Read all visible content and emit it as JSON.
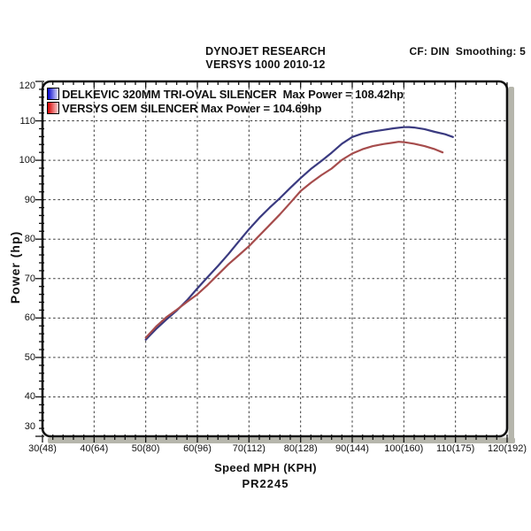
{
  "chart_data": {
    "type": "line",
    "title": "DYNOJET RESEARCH",
    "subtitle": "VERSYS 1000 2010-12",
    "corner_note": "CF: DIN  Smoothing: 5",
    "xlabel": "Speed MPH (KPH)",
    "ylabel": "Power (hp)",
    "footnote": "PR2245",
    "xlim": [
      30,
      120
    ],
    "ylim": [
      30,
      120
    ],
    "grid": "dashed-major",
    "minor_tick_step": 2,
    "legend_position": "top-left-inside",
    "x_ticks": [
      {
        "value": 30,
        "label": "30(48)"
      },
      {
        "value": 40,
        "label": "40(64)"
      },
      {
        "value": 50,
        "label": "50(80)"
      },
      {
        "value": 60,
        "label": "60(96)"
      },
      {
        "value": 70,
        "label": "70(112)"
      },
      {
        "value": 80,
        "label": "80(128)"
      },
      {
        "value": 90,
        "label": "90(144)"
      },
      {
        "value": 100,
        "label": "100(160)"
      },
      {
        "value": 110,
        "label": "110(175)"
      },
      {
        "value": 120,
        "label": "120(192)"
      }
    ],
    "y_ticks": [
      {
        "value": 30,
        "label": "30"
      },
      {
        "value": 40,
        "label": "40"
      },
      {
        "value": 50,
        "label": "50"
      },
      {
        "value": 60,
        "label": "60"
      },
      {
        "value": 70,
        "label": "70"
      },
      {
        "value": 80,
        "label": "80"
      },
      {
        "value": 90,
        "label": "90"
      },
      {
        "value": 100,
        "label": "100"
      },
      {
        "value": 110,
        "label": "110"
      },
      {
        "value": 120,
        "label": "120"
      }
    ],
    "series": [
      {
        "id": "delkevic",
        "label": "DELKEVIC 320MM TRI-OVAL SILENCER  Max Power = 108.42hp",
        "max_power_hp": 108.42,
        "color": "#3A3A80",
        "swatch_gradient": [
          "#0000CC",
          "#E8E8FF"
        ],
        "points": [
          [
            50,
            54.5
          ],
          [
            52,
            57.2
          ],
          [
            54,
            59.6
          ],
          [
            56,
            61.9
          ],
          [
            58,
            64.5
          ],
          [
            60,
            67.5
          ],
          [
            62,
            70.4
          ],
          [
            64,
            73.2
          ],
          [
            66,
            76.2
          ],
          [
            68,
            79.4
          ],
          [
            70,
            82.5
          ],
          [
            72,
            85.4
          ],
          [
            74,
            88.0
          ],
          [
            76,
            90.4
          ],
          [
            78,
            93.0
          ],
          [
            80,
            95.5
          ],
          [
            82,
            97.8
          ],
          [
            84,
            99.8
          ],
          [
            86,
            101.9
          ],
          [
            88,
            104.2
          ],
          [
            90,
            105.9
          ],
          [
            92,
            106.8
          ],
          [
            94,
            107.3
          ],
          [
            96,
            107.7
          ],
          [
            98,
            108.1
          ],
          [
            100,
            108.4
          ],
          [
            101,
            108.42
          ],
          [
            102,
            108.3
          ],
          [
            104,
            107.9
          ],
          [
            106,
            107.2
          ],
          [
            108,
            106.6
          ],
          [
            109.5,
            105.9
          ]
        ]
      },
      {
        "id": "oem",
        "label": "VERSYS OEM SILENCER Max Power = 104.69hp",
        "max_power_hp": 104.69,
        "color": "#A64C4C",
        "swatch_gradient": [
          "#D40000",
          "#FFD6D6"
        ],
        "points": [
          [
            50,
            55.0
          ],
          [
            52,
            57.8
          ],
          [
            54,
            60.2
          ],
          [
            56,
            62.1
          ],
          [
            58,
            64.1
          ],
          [
            60,
            66.0
          ],
          [
            62,
            68.4
          ],
          [
            64,
            71.0
          ],
          [
            66,
            73.6
          ],
          [
            68,
            75.9
          ],
          [
            70,
            78.2
          ],
          [
            72,
            80.9
          ],
          [
            74,
            83.6
          ],
          [
            76,
            86.3
          ],
          [
            78,
            89.2
          ],
          [
            80,
            92.2
          ],
          [
            82,
            94.3
          ],
          [
            84,
            96.2
          ],
          [
            86,
            97.9
          ],
          [
            88,
            100.1
          ],
          [
            90,
            101.7
          ],
          [
            92,
            102.8
          ],
          [
            94,
            103.6
          ],
          [
            96,
            104.1
          ],
          [
            98,
            104.5
          ],
          [
            99,
            104.69
          ],
          [
            100,
            104.6
          ],
          [
            102,
            104.2
          ],
          [
            104,
            103.6
          ],
          [
            106,
            102.8
          ],
          [
            107.5,
            102.0
          ]
        ]
      }
    ]
  }
}
